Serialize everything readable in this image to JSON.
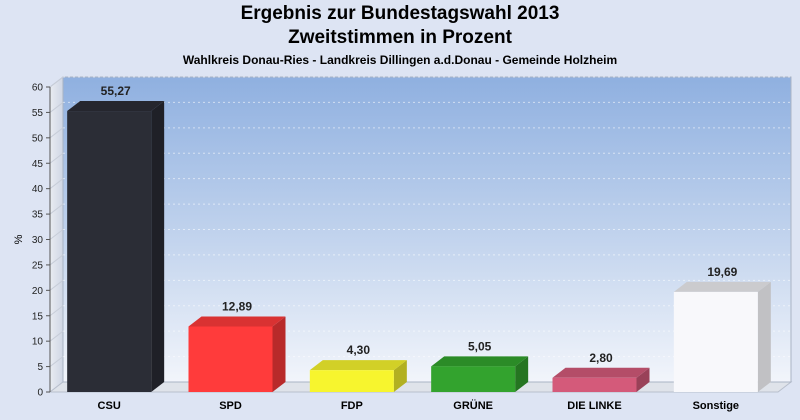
{
  "chart_data": {
    "type": "bar",
    "title": "Ergebnis zur Bundestagswahl 2013",
    "subtitle": "Zweitstimmen in Prozent",
    "caption": "Wahlkreis Donau-Ries - Landkreis Dillingen a.d.Donau - Gemeinde Holzheim",
    "xlabel": "",
    "ylabel": "%",
    "ylim": [
      0,
      60
    ],
    "yticks": [
      0,
      5,
      10,
      15,
      20,
      25,
      30,
      35,
      40,
      45,
      50,
      55,
      60
    ],
    "categories": [
      "CSU",
      "SPD",
      "FDP",
      "GRÜNE",
      "DIE LINKE",
      "Sonstige"
    ],
    "values": [
      55.27,
      12.89,
      4.3,
      5.05,
      2.8,
      19.69
    ],
    "value_labels": [
      "55,27",
      "12,89",
      "4,30",
      "5,05",
      "2,80",
      "19,69"
    ],
    "colors": [
      "#2b2d36",
      "#ff3b3b",
      "#f7f52e",
      "#33a32e",
      "#d45a7a",
      "#f8f8fb"
    ],
    "grid": true,
    "legend": "none"
  }
}
